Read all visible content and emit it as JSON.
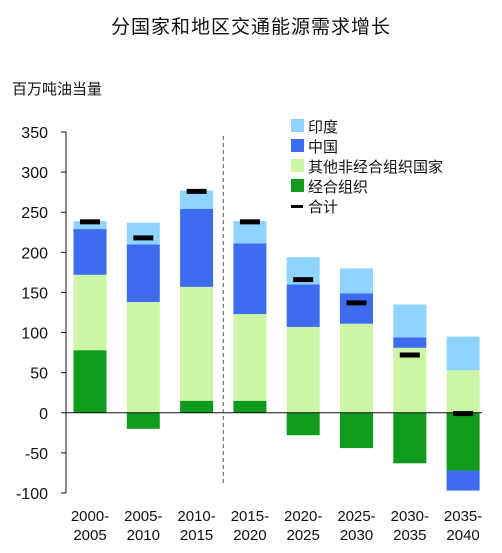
{
  "chart_data": {
    "type": "bar",
    "stacked": true,
    "title": "分国家和地区交通能源需求增长",
    "ylabel": "百万吨油当量",
    "ylim": [
      -100,
      350
    ],
    "yticks": [
      350,
      300,
      250,
      200,
      150,
      100,
      50,
      0,
      -50,
      -100
    ],
    "grid": false,
    "legend_position": "top-right",
    "divider_after_category": 2,
    "categories": [
      [
        "2000-",
        "2005"
      ],
      [
        "2005-",
        "2010"
      ],
      [
        "2010-",
        "2015"
      ],
      [
        "2015-",
        "2020"
      ],
      [
        "2020-",
        "2025"
      ],
      [
        "2025-",
        "2030"
      ],
      [
        "2030-",
        "2035"
      ],
      [
        "2035-",
        "2040"
      ]
    ],
    "series": [
      {
        "name": "经合组织",
        "color": "#0f9b1b",
        "values": [
          78,
          -20,
          15,
          15,
          -28,
          -44,
          -63,
          -72
        ]
      },
      {
        "name": "其他非经合组织国家",
        "color": "#ccf5a6",
        "values": [
          94,
          138,
          142,
          108,
          107,
          111,
          81,
          53
        ]
      },
      {
        "name": "中国",
        "color": "#3d6cf0",
        "values": [
          57,
          72,
          97,
          88,
          53,
          38,
          13,
          0
        ]
      },
      {
        "name": "印度",
        "color": "#8fd4ff",
        "values": [
          10,
          27,
          23,
          28,
          34,
          31,
          41,
          42
        ]
      }
    ],
    "india_negative_extra": [
      0,
      0,
      0,
      0,
      0,
      0,
      0,
      0
    ],
    "china_negative": [
      0,
      0,
      0,
      0,
      0,
      0,
      0,
      -25
    ],
    "total": {
      "name": "合计",
      "color": "#000000",
      "values": [
        238,
        218,
        276,
        238,
        166,
        137,
        72,
        -1
      ]
    },
    "legend_order": [
      "印度",
      "中国",
      "其他非经合组织国家",
      "经合组织",
      "合计"
    ]
  }
}
